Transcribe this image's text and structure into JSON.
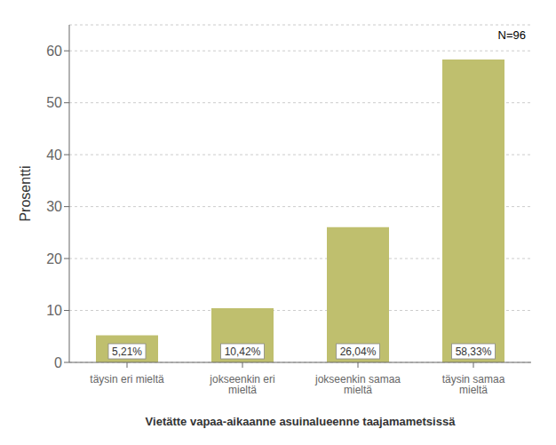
{
  "chart_data": {
    "type": "bar",
    "categories": [
      "täysin eri mieltä",
      "jokseenkin eri mieltä",
      "jokseenkin samaa mieltä",
      "täysin samaa mieltä"
    ],
    "values": [
      5.21,
      10.42,
      26.04,
      58.33
    ],
    "value_labels": [
      "5,21%",
      "10,42%",
      "26,04%",
      "58,33%"
    ],
    "data_labels": true,
    "color": "#bfbf6e",
    "xlabel": "Vietätte vapaa-aikaanne asuinalueenne taajamametsissä",
    "ylabel": "Prosentti",
    "ylim": [
      0,
      65
    ],
    "yticks": [
      0,
      10,
      20,
      30,
      40,
      50,
      60
    ],
    "grid": true,
    "annotations": [
      "N=96"
    ]
  }
}
